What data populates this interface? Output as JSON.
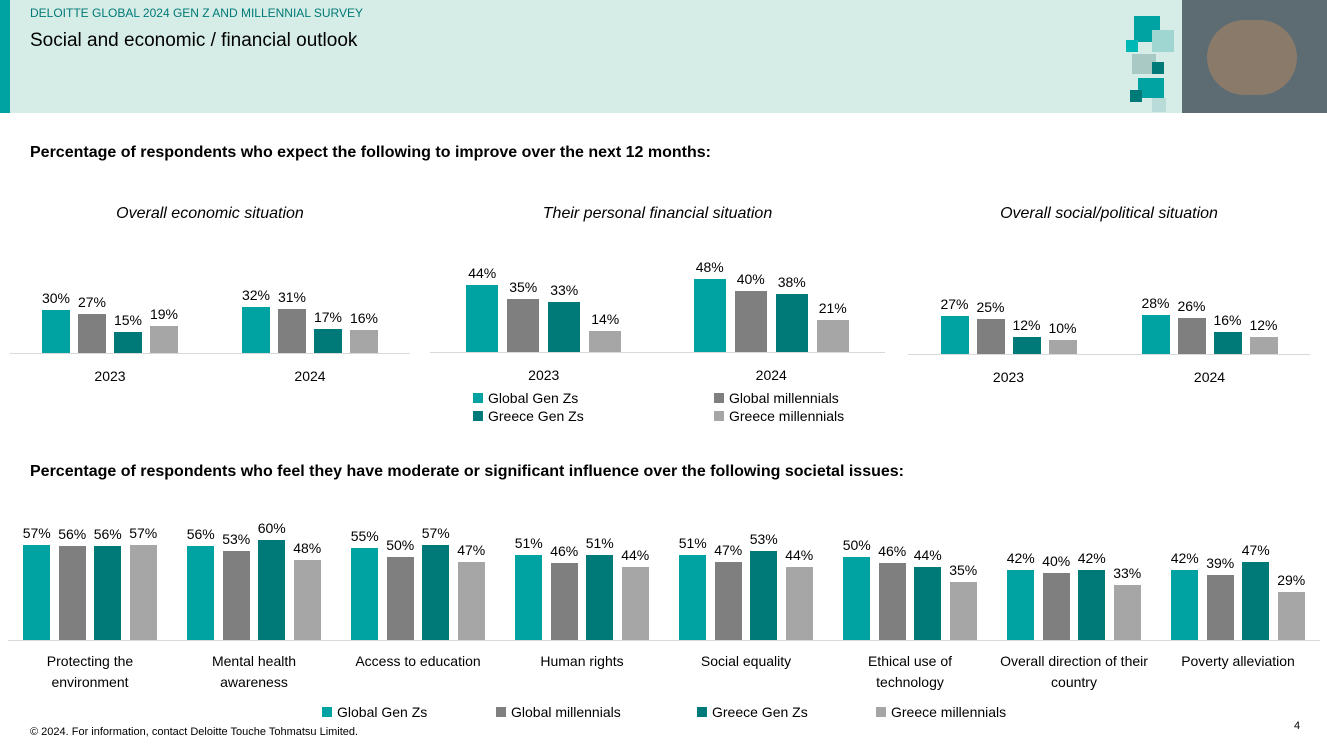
{
  "header": {
    "kicker": "DELOITTE GLOBAL 2024 GEN Z AND MILLENNIAL SURVEY",
    "title": "Social and economic / financial outlook"
  },
  "section_titles": [
    "Percentage of respondents who expect the following to improve over the next 12 months:",
    "Percentage of respondents who feel they have moderate or significant influence over the following societal issues:"
  ],
  "footer": "© 2024. For information, contact Deloitte Touche Tohmatsu Limited.",
  "page_number": 4,
  "chart_data": [
    {
      "type": "bar",
      "title": "Overall economic situation",
      "categories": [
        "2023",
        "2024"
      ],
      "series": [
        {
          "color": "#00a3a1",
          "values": [
            30,
            32
          ],
          "value_labels": [
            "30%",
            "32%"
          ]
        },
        {
          "color": "#7f7f7f",
          "values": [
            27,
            31
          ],
          "value_labels": [
            "27%",
            "31%"
          ]
        },
        {
          "color": "#007a78",
          "values": [
            15,
            17
          ],
          "value_labels": [
            "15%",
            "17%"
          ]
        },
        {
          "color": "#a6a6a6",
          "values": [
            19,
            16
          ],
          "value_labels": [
            "19%",
            "16%"
          ]
        }
      ]
    },
    {
      "type": "bar",
      "title": "Their personal financial situation",
      "categories": [
        "2023",
        "2024"
      ],
      "series": [
        {
          "name": "Global Gen Zs",
          "color": "#00a3a1",
          "values": [
            44,
            48
          ],
          "value_labels": [
            "44%",
            "48%"
          ]
        },
        {
          "name": "Global millennials",
          "color": "#7f7f7f",
          "values": [
            35,
            40
          ],
          "value_labels": [
            "35%",
            "40%"
          ]
        },
        {
          "name": "Greece Gen Zs",
          "color": "#007a78",
          "values": [
            33,
            38
          ],
          "value_labels": [
            "33%",
            "38%"
          ]
        },
        {
          "name": "Greece millennials",
          "color": "#a6a6a6",
          "values": [
            14,
            21
          ],
          "value_labels": [
            "14%",
            "21%"
          ]
        }
      ]
    },
    {
      "type": "bar",
      "title": "Overall social/political situation",
      "categories": [
        "2023",
        "2024"
      ],
      "series": [
        {
          "color": "#00a3a1",
          "values": [
            27,
            28
          ],
          "value_labels": [
            "27%",
            "28%"
          ]
        },
        {
          "color": "#7f7f7f",
          "values": [
            25,
            26
          ],
          "value_labels": [
            "25%",
            "26%"
          ]
        },
        {
          "color": "#007a78",
          "values": [
            12,
            16
          ],
          "value_labels": [
            "12%",
            "16%"
          ]
        },
        {
          "color": "#a6a6a6",
          "values": [
            10,
            12
          ],
          "value_labels": [
            "10%",
            "12%"
          ]
        }
      ]
    },
    {
      "type": "bar",
      "categories": [
        "Protecting the environment",
        "Mental health awareness",
        "Access to education",
        "Human rights",
        "Social equality",
        "Ethical use of technology",
        "Overall direction of their country",
        "Poverty alleviation"
      ],
      "series": [
        {
          "name": "Global Gen Zs",
          "color": "#00a3a1",
          "values": [
            57,
            56,
            55,
            51,
            51,
            50,
            42,
            42
          ],
          "value_labels": [
            "57%",
            "56%",
            "55%",
            "51%",
            "51%",
            "50%",
            "42%",
            "42%"
          ]
        },
        {
          "name": "Global millennials",
          "color": "#7f7f7f",
          "values": [
            56,
            53,
            50,
            46,
            47,
            46,
            40,
            39
          ],
          "value_labels": [
            "56%",
            "53%",
            "50%",
            "46%",
            "47%",
            "46%",
            "40%",
            "39%"
          ]
        },
        {
          "name": "Greece Gen Zs",
          "color": "#007a78",
          "values": [
            56,
            60,
            57,
            51,
            53,
            44,
            42,
            47
          ],
          "value_labels": [
            "56%",
            "60%",
            "57%",
            "51%",
            "53%",
            "44%",
            "42%",
            "47%"
          ]
        },
        {
          "name": "Greece millennials",
          "color": "#a6a6a6",
          "values": [
            57,
            48,
            47,
            44,
            44,
            35,
            33,
            29
          ],
          "value_labels": [
            "57%",
            "48%",
            "47%",
            "44%",
            "44%",
            "35%",
            "33%",
            "29%"
          ]
        }
      ]
    }
  ]
}
